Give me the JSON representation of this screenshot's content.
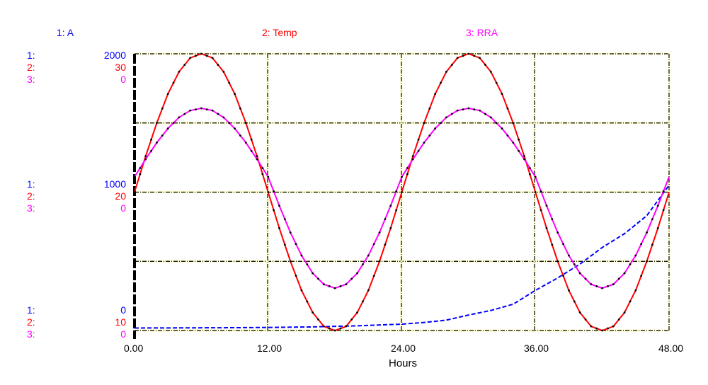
{
  "chart_data": {
    "type": "line",
    "xlabel": "Hours",
    "xlim": [
      0,
      48
    ],
    "x_ticks": [
      "0.00",
      "12.00",
      "24.00",
      "36.00",
      "48.00"
    ],
    "grid": true,
    "legend": "top",
    "series": [
      {
        "id": "1",
        "name": "1: A",
        "color": "#0000ff",
        "axis": {
          "prefix": "1:",
          "max": "2000",
          "mid": "1000",
          "min": "0"
        },
        "ylim": [
          0,
          2000
        ],
        "x": [
          0,
          4,
          8,
          12,
          16,
          18,
          20,
          24,
          26,
          28,
          30,
          32,
          34,
          36,
          38,
          40,
          42,
          44,
          46,
          48
        ],
        "values": [
          18,
          19,
          20,
          22,
          26,
          30,
          34,
          46,
          58,
          75,
          112,
          145,
          190,
          290,
          380,
          480,
          600,
          700,
          830,
          1050
        ]
      },
      {
        "id": "2",
        "name": "2: Temp",
        "color": "#ff0000",
        "axis": {
          "prefix": "2:",
          "max": "30",
          "mid": "20",
          "min": "10"
        },
        "ylim": [
          10,
          30
        ],
        "x": [
          0,
          1,
          2,
          3,
          4,
          5,
          6,
          7,
          8,
          9,
          10,
          11,
          12,
          13,
          14,
          15,
          16,
          17,
          18,
          19,
          20,
          21,
          22,
          23,
          24,
          25,
          26,
          27,
          28,
          29,
          30,
          31,
          32,
          33,
          34,
          35,
          36,
          37,
          38,
          39,
          40,
          41,
          42,
          43,
          44,
          45,
          46,
          47,
          48
        ],
        "values": [
          20,
          22.6,
          25,
          27.1,
          28.7,
          29.7,
          30,
          29.7,
          28.7,
          27.1,
          25,
          22.6,
          20,
          17.4,
          15,
          12.9,
          11.3,
          10.3,
          10,
          10.3,
          11.3,
          12.9,
          15,
          17.4,
          20,
          22.6,
          25,
          27.1,
          28.7,
          29.7,
          30,
          29.7,
          28.7,
          27.1,
          25,
          22.6,
          20,
          17.4,
          15,
          12.9,
          11.3,
          10.3,
          10,
          10.3,
          11.3,
          12.9,
          15,
          17.4,
          20
        ]
      },
      {
        "id": "3",
        "name": "3: RRA",
        "color": "#ff00ff",
        "axis": {
          "prefix": "3:",
          "max": "0",
          "mid": "0",
          "min": "0"
        },
        "ylim": [
          0,
          1
        ],
        "x": [
          0,
          1,
          2,
          3,
          4,
          5,
          6,
          7,
          8,
          9,
          10,
          11,
          12,
          13,
          14,
          15,
          16,
          17,
          18,
          19,
          20,
          21,
          22,
          23,
          24,
          25,
          26,
          27,
          28,
          29,
          30,
          31,
          32,
          33,
          34,
          35,
          36,
          37,
          38,
          39,
          40,
          41,
          42,
          43,
          44,
          45,
          46,
          47,
          48
        ],
        "values": [
          0.555,
          0.619,
          0.679,
          0.73,
          0.77,
          0.795,
          0.803,
          0.795,
          0.77,
          0.73,
          0.679,
          0.619,
          0.555,
          0.451,
          0.354,
          0.271,
          0.207,
          0.167,
          0.153,
          0.167,
          0.207,
          0.271,
          0.354,
          0.451,
          0.555,
          0.619,
          0.679,
          0.73,
          0.77,
          0.795,
          0.803,
          0.795,
          0.77,
          0.73,
          0.679,
          0.619,
          0.555,
          0.451,
          0.354,
          0.271,
          0.207,
          0.167,
          0.153,
          0.167,
          0.207,
          0.271,
          0.354,
          0.451,
          0.555
        ]
      }
    ]
  }
}
